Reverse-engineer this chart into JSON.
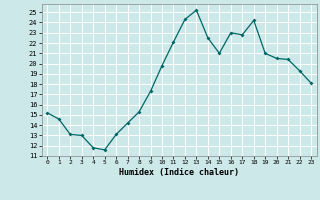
{
  "title": "",
  "xlabel": "Humidex (Indice chaleur)",
  "ylabel": "",
  "background_color": "#cce8e8",
  "grid_color": "#ffffff",
  "line_color": "#006666",
  "marker_color": "#006666",
  "xlim": [
    -0.5,
    23.5
  ],
  "ylim": [
    11,
    25.8
  ],
  "yticks": [
    11,
    12,
    13,
    14,
    15,
    16,
    17,
    18,
    19,
    20,
    21,
    22,
    23,
    24,
    25
  ],
  "xticks": [
    0,
    1,
    2,
    3,
    4,
    5,
    6,
    7,
    8,
    9,
    10,
    11,
    12,
    13,
    14,
    15,
    16,
    17,
    18,
    19,
    20,
    21,
    22,
    23
  ],
  "x": [
    0,
    1,
    2,
    3,
    4,
    5,
    6,
    7,
    8,
    9,
    10,
    11,
    12,
    13,
    14,
    15,
    16,
    17,
    18,
    19,
    20,
    21,
    22,
    23
  ],
  "y": [
    15.2,
    14.6,
    13.1,
    13.0,
    11.8,
    11.6,
    13.1,
    14.2,
    15.3,
    17.3,
    19.8,
    22.1,
    24.3,
    25.2,
    22.5,
    21.0,
    23.0,
    22.8,
    24.2,
    21.0,
    20.5,
    20.4,
    19.3,
    18.1
  ]
}
